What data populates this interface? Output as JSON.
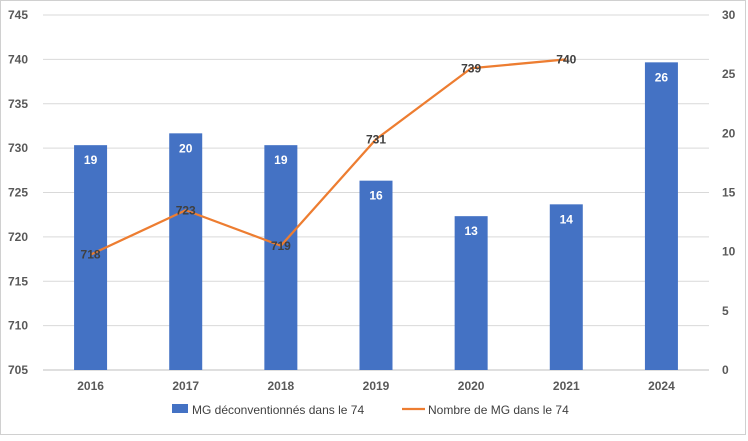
{
  "chart_data": {
    "type": "bar",
    "title": "",
    "categories": [
      "2016",
      "2017",
      "2018",
      "2019",
      "2020",
      "2021",
      "2024"
    ],
    "series": [
      {
        "name": "MG déconventionnés dans le 74",
        "type": "bar",
        "axis": "right",
        "values": [
          19,
          20,
          19,
          16,
          13,
          14,
          26
        ],
        "color": "#4472C4"
      },
      {
        "name": "Nombre de MG dans le 74",
        "type": "line",
        "axis": "left",
        "values": [
          718,
          723,
          719,
          731,
          739,
          740,
          null
        ],
        "color": "#ED7D31"
      }
    ],
    "y_left": {
      "min": 705,
      "max": 745,
      "step": 5,
      "ticks": [
        "705",
        "710",
        "715",
        "720",
        "725",
        "730",
        "735",
        "740",
        "745"
      ]
    },
    "y_right": {
      "min": 0,
      "max": 30,
      "step": 5,
      "ticks": [
        "0",
        "5",
        "10",
        "15",
        "20",
        "25",
        "30"
      ]
    },
    "grid": true,
    "legend": "bottom"
  }
}
